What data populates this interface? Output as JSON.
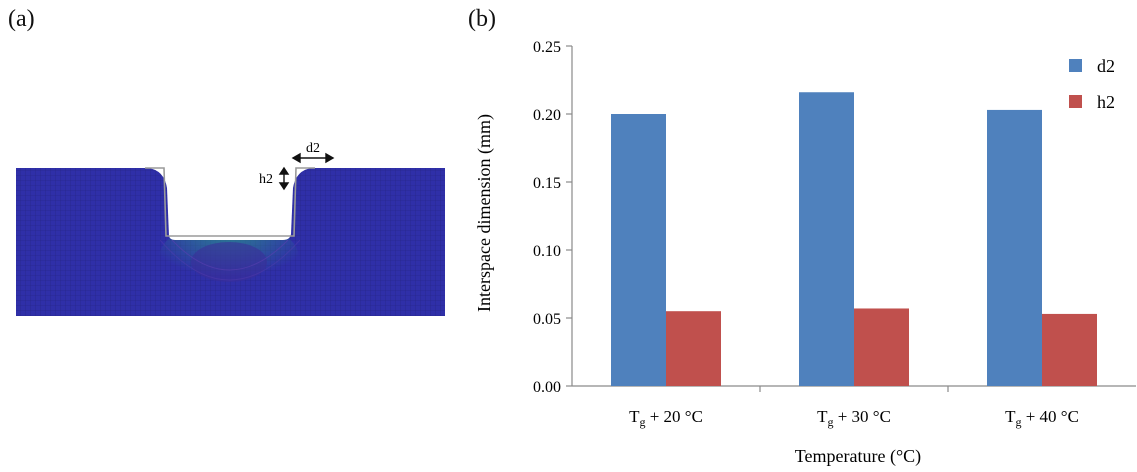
{
  "panel_a": {
    "label": "(a)",
    "annotations": {
      "d2": "d2",
      "h2": "h2"
    },
    "colors": {
      "mesh": "#2f2fa8",
      "grid": "#1a1a5e",
      "contact": "#2a9a8c"
    }
  },
  "panel_b": {
    "label": "(b)"
  },
  "chart_data": {
    "type": "bar",
    "categories": [
      {
        "base": "T",
        "sub": "g",
        "rest": " + 20 °C"
      },
      {
        "base": "T",
        "sub": "g",
        "rest": " + 30 °C"
      },
      {
        "base": "T",
        "sub": "g",
        "rest": " + 40 °C"
      }
    ],
    "series": [
      {
        "name": "d2",
        "color": "#4f81bd",
        "values": [
          0.2,
          0.216,
          0.203
        ]
      },
      {
        "name": "h2",
        "color": "#c0504d",
        "values": [
          0.055,
          0.057,
          0.053
        ]
      }
    ],
    "xlabel": "Temperature (°C)",
    "ylabel": "Interspace dimension (mm)",
    "ylim": [
      0,
      0.25
    ],
    "yticks": [
      "0.00",
      "0.05",
      "0.10",
      "0.15",
      "0.20",
      "0.25"
    ],
    "grid": false,
    "legend_position": "top-right"
  }
}
